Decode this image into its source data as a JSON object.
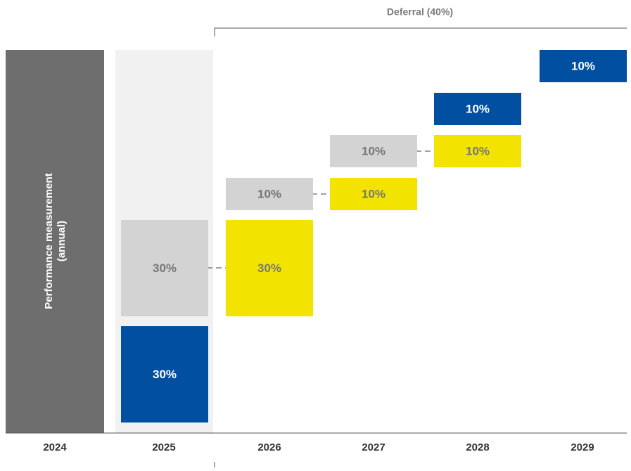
{
  "deferral_label": "Deferral (40%)",
  "performance_label": [
    "Performance measurement",
    "(annual)"
  ],
  "years": [
    "2024",
    "2025",
    "2026",
    "2027",
    "2028",
    "2029"
  ],
  "blocks": [
    "30%",
    "30%",
    "30%",
    "10%",
    "10%",
    "10%",
    "10%",
    "10%",
    "10%"
  ]
}
